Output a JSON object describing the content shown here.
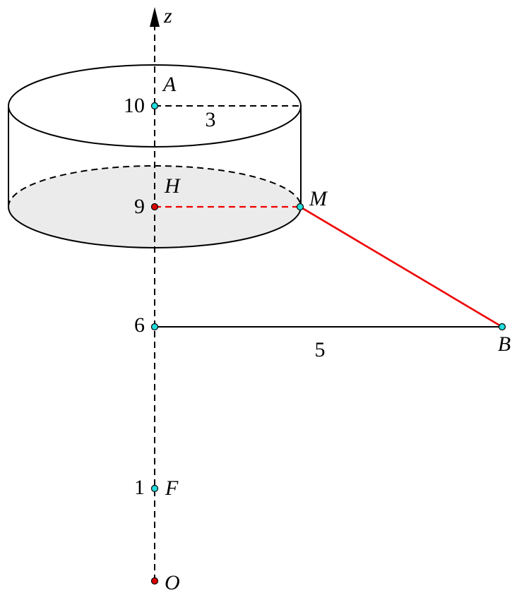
{
  "axis_label": "z",
  "points": [
    {
      "name": "A",
      "height": 10
    },
    {
      "name": "H",
      "height": 9
    },
    {
      "name": "M"
    },
    {
      "height": 6
    },
    {
      "name": "B"
    },
    {
      "name": "F",
      "height": 1
    },
    {
      "name": "O"
    }
  ],
  "segments": [
    {
      "length": 3
    },
    {
      "length": 5
    }
  ]
}
